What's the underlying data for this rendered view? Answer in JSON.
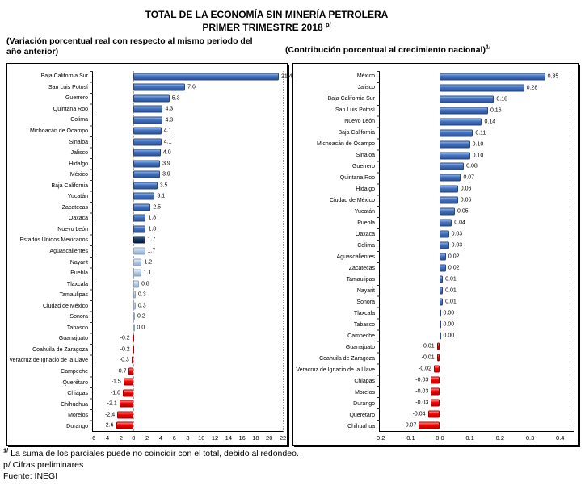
{
  "header": {
    "title_line1": "TOTAL DE LA ECONOMÍA SIN MINERÍA PETROLERA",
    "title_line2": "PRIMER TRIMESTRE 2018 ",
    "title_superscript": "p/"
  },
  "footnotes": {
    "note1_sup": "1/",
    "note1_text": " La suma de los parciales puede no coincidir con el total, debido al redondeo.",
    "note2": "p/ Cifras preliminares",
    "note3": "Fuente: INEGI"
  },
  "colors": {
    "bar_blue": "#4472C4",
    "bar_navy": "#17375E",
    "bar_lightblue": "#B8CCE4",
    "bar_red": "#FB0000",
    "zero_line_gray": "#A6A6A6",
    "axis_black": "#000000"
  },
  "chart_data": [
    {
      "type": "bar",
      "orientation": "horizontal",
      "title": "(Variación porcentual real con respecto al mismo periodo del año anterior)",
      "title_superscript": "",
      "xlabel": "",
      "ylabel": "",
      "legend": "none",
      "grid": "zero-line-only",
      "x_min": -6,
      "x_max": 22,
      "plot_x_max": 22,
      "x_tick_step": 2,
      "x_ticks": [
        -6,
        -4,
        -2,
        0,
        2,
        4,
        6,
        8,
        10,
        12,
        14,
        16,
        18,
        20,
        22
      ],
      "tick_decimals": 0,
      "value_decimals": 1,
      "items": [
        {
          "label": "Baja California Sur",
          "value": 21.4,
          "color": "blue"
        },
        {
          "label": "San Luis Potosí",
          "value": 7.6,
          "color": "blue"
        },
        {
          "label": "Guerrero",
          "value": 5.3,
          "color": "blue"
        },
        {
          "label": "Quintana Roo",
          "value": 4.3,
          "color": "blue"
        },
        {
          "label": "Colima",
          "value": 4.3,
          "color": "blue"
        },
        {
          "label": "Michoacán de Ocampo",
          "value": 4.1,
          "color": "blue"
        },
        {
          "label": "Sinaloa",
          "value": 4.1,
          "color": "blue"
        },
        {
          "label": "Jalisco",
          "value": 4.0,
          "color": "blue"
        },
        {
          "label": "Hidalgo",
          "value": 3.9,
          "color": "blue"
        },
        {
          "label": "México",
          "value": 3.9,
          "color": "blue"
        },
        {
          "label": "Baja California",
          "value": 3.5,
          "color": "blue"
        },
        {
          "label": "Yucatán",
          "value": 3.1,
          "color": "blue"
        },
        {
          "label": "Zacatecas",
          "value": 2.5,
          "color": "blue"
        },
        {
          "label": "Oaxaca",
          "value": 1.8,
          "color": "blue"
        },
        {
          "label": "Nuevo León",
          "value": 1.8,
          "color": "blue"
        },
        {
          "label": "Estados Unidos Mexicanos",
          "value": 1.7,
          "color": "navy"
        },
        {
          "label": "Aguascalientes",
          "value": 1.7,
          "color": "lightblue"
        },
        {
          "label": "Nayarit",
          "value": 1.2,
          "color": "lightblue"
        },
        {
          "label": "Puebla",
          "value": 1.1,
          "color": "lightblue"
        },
        {
          "label": "Tlaxcala",
          "value": 0.8,
          "color": "lightblue"
        },
        {
          "label": "Tamaulipas",
          "value": 0.3,
          "color": "lightblue"
        },
        {
          "label": "Ciudad de México",
          "value": 0.3,
          "color": "lightblue"
        },
        {
          "label": "Sonora",
          "value": 0.2,
          "color": "lightblue"
        },
        {
          "label": "Tabasco",
          "value": 0.0,
          "color": "lightblue"
        },
        {
          "label": "Guanajuato",
          "value": -0.2,
          "color": "red"
        },
        {
          "label": "Coahuila de Zaragoza",
          "value": -0.2,
          "color": "red"
        },
        {
          "label": "Veracruz de Ignacio de la Llave",
          "value": -0.3,
          "color": "red"
        },
        {
          "label": "Campeche",
          "value": -0.7,
          "color": "red"
        },
        {
          "label": "Querétaro",
          "value": -1.5,
          "color": "red"
        },
        {
          "label": "Chiapas",
          "value": -1.6,
          "color": "red"
        },
        {
          "label": "Chihuahua",
          "value": -2.1,
          "color": "red"
        },
        {
          "label": "Morelos",
          "value": -2.4,
          "color": "red"
        },
        {
          "label": "Durango",
          "value": -2.6,
          "color": "red"
        }
      ]
    },
    {
      "type": "bar",
      "orientation": "horizontal",
      "title": "(Contribución porcentual al crecimiento nacional)",
      "title_superscript": "1/",
      "xlabel": "",
      "ylabel": "",
      "legend": "none",
      "grid": "zero-line-only",
      "x_min": -0.2,
      "x_max": 0.4,
      "plot_x_max": 0.445,
      "x_tick_step": 0.1,
      "x_ticks": [
        -0.2,
        -0.1,
        0,
        0.1,
        0.2,
        0.3,
        0.4
      ],
      "tick_decimals": 1,
      "value_decimals": 2,
      "items": [
        {
          "label": "México",
          "value": 0.35,
          "color": "blue"
        },
        {
          "label": "Jalisco",
          "value": 0.28,
          "color": "blue"
        },
        {
          "label": "Baja California Sur",
          "value": 0.18,
          "color": "blue"
        },
        {
          "label": "San Luis Potosí",
          "value": 0.16,
          "color": "blue"
        },
        {
          "label": "Nuevo León",
          "value": 0.14,
          "color": "blue"
        },
        {
          "label": "Baja California",
          "value": 0.11,
          "color": "blue"
        },
        {
          "label": "Michoacán de Ocampo",
          "value": 0.1,
          "color": "blue"
        },
        {
          "label": "Sinaloa",
          "value": 0.1,
          "color": "blue"
        },
        {
          "label": "Guerrero",
          "value": 0.08,
          "color": "blue"
        },
        {
          "label": "Quintana Roo",
          "value": 0.07,
          "color": "blue"
        },
        {
          "label": "Hidalgo",
          "value": 0.06,
          "color": "blue"
        },
        {
          "label": "Ciudad de México",
          "value": 0.06,
          "color": "blue"
        },
        {
          "label": "Yucatán",
          "value": 0.05,
          "color": "blue"
        },
        {
          "label": "Puebla",
          "value": 0.04,
          "color": "blue"
        },
        {
          "label": "Oaxaca",
          "value": 0.03,
          "color": "blue"
        },
        {
          "label": "Colima",
          "value": 0.03,
          "color": "blue"
        },
        {
          "label": "Aguascalientes",
          "value": 0.02,
          "color": "blue"
        },
        {
          "label": "Zacatecas",
          "value": 0.02,
          "color": "blue"
        },
        {
          "label": "Tamaulipas",
          "value": 0.01,
          "color": "blue"
        },
        {
          "label": "Nayarit",
          "value": 0.01,
          "color": "blue"
        },
        {
          "label": "Sonora",
          "value": 0.01,
          "color": "blue"
        },
        {
          "label": "Tlaxcala",
          "value": 0.0,
          "color": "blue"
        },
        {
          "label": "Tabasco",
          "value": 0.0,
          "color": "blue"
        },
        {
          "label": "Campeche",
          "value": 0.0,
          "color": "blue"
        },
        {
          "label": "Guanajuato",
          "value": -0.01,
          "color": "red"
        },
        {
          "label": "Coahuila de Zaragoza",
          "value": -0.01,
          "color": "red"
        },
        {
          "label": "Veracruz de Ignacio de la Llave",
          "value": -0.02,
          "color": "red"
        },
        {
          "label": "Chiapas",
          "value": -0.03,
          "color": "red"
        },
        {
          "label": "Morelos",
          "value": -0.03,
          "color": "red"
        },
        {
          "label": "Durango",
          "value": -0.03,
          "color": "red"
        },
        {
          "label": "Querétaro",
          "value": -0.04,
          "color": "red"
        },
        {
          "label": "Chihuahua",
          "value": -0.07,
          "color": "red"
        }
      ]
    }
  ]
}
